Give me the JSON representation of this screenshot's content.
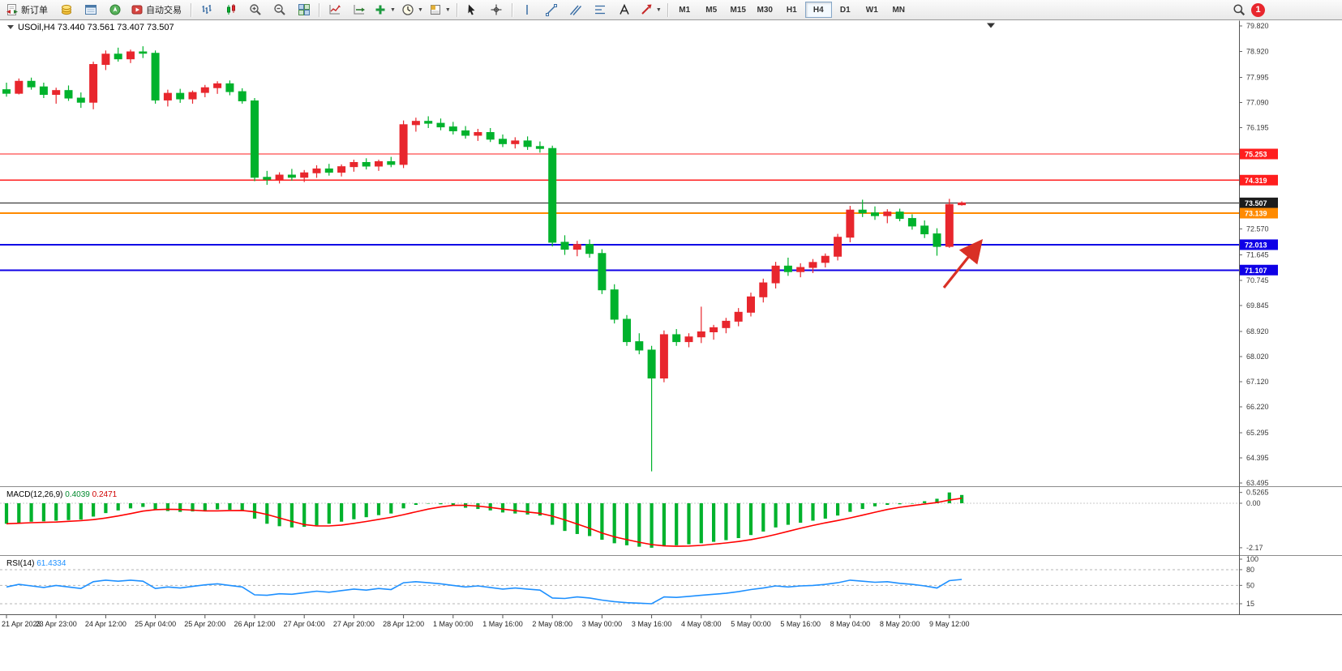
{
  "toolbar": {
    "new_order": "新订单",
    "auto_trading": "自动交易",
    "timeframes": [
      "M1",
      "M5",
      "M15",
      "M30",
      "H1",
      "H4",
      "D1",
      "W1",
      "MN"
    ],
    "active_timeframe": "H4",
    "notification_count": "1"
  },
  "chart_data": {
    "type": "candlestick",
    "symbol": "USOil",
    "timeframe": "H4",
    "header": "USOil,H4 73.440 73.561 73.407 73.507",
    "ohlc": {
      "open": "73.440",
      "high": "73.561",
      "low": "73.407",
      "close": "73.507"
    },
    "ylim": [
      63.495,
      79.82
    ],
    "candles": [
      [
        77.55,
        77.8,
        77.3,
        77.42
      ],
      [
        77.42,
        77.95,
        77.38,
        77.85
      ],
      [
        77.85,
        77.98,
        77.55,
        77.65
      ],
      [
        77.65,
        77.8,
        77.25,
        77.38
      ],
      [
        77.38,
        77.62,
        77.05,
        77.52
      ],
      [
        77.52,
        77.7,
        77.15,
        77.25
      ],
      [
        77.25,
        77.45,
        76.9,
        77.1
      ],
      [
        77.1,
        78.55,
        76.85,
        78.45
      ],
      [
        78.45,
        78.95,
        78.25,
        78.82
      ],
      [
        78.82,
        79.05,
        78.55,
        78.65
      ],
      [
        78.65,
        78.98,
        78.5,
        78.9
      ],
      [
        78.9,
        79.1,
        78.68,
        78.85
      ],
      [
        78.85,
        78.95,
        77.05,
        77.18
      ],
      [
        77.18,
        77.55,
        76.95,
        77.42
      ],
      [
        77.42,
        77.58,
        77.08,
        77.22
      ],
      [
        77.22,
        77.52,
        77.05,
        77.45
      ],
      [
        77.45,
        77.72,
        77.28,
        77.62
      ],
      [
        77.62,
        77.85,
        77.4,
        77.76
      ],
      [
        77.76,
        77.88,
        77.35,
        77.48
      ],
      [
        77.48,
        77.6,
        77.05,
        77.15
      ],
      [
        77.15,
        77.25,
        74.28,
        74.42
      ],
      [
        74.42,
        74.65,
        74.15,
        74.35
      ],
      [
        74.35,
        74.6,
        74.2,
        74.5
      ],
      [
        74.5,
        74.72,
        74.3,
        74.42
      ],
      [
        74.42,
        74.68,
        74.25,
        74.58
      ],
      [
        74.58,
        74.85,
        74.4,
        74.72
      ],
      [
        74.72,
        74.9,
        74.48,
        74.6
      ],
      [
        74.6,
        74.88,
        74.45,
        74.8
      ],
      [
        74.8,
        75.05,
        74.62,
        74.95
      ],
      [
        74.95,
        75.1,
        74.7,
        74.82
      ],
      [
        74.82,
        75.05,
        74.65,
        74.98
      ],
      [
        74.98,
        75.15,
        74.78,
        74.88
      ],
      [
        74.88,
        76.45,
        74.75,
        76.3
      ],
      [
        76.3,
        76.55,
        76.05,
        76.42
      ],
      [
        76.42,
        76.6,
        76.18,
        76.35
      ],
      [
        76.35,
        76.52,
        76.1,
        76.22
      ],
      [
        76.22,
        76.4,
        75.95,
        76.08
      ],
      [
        76.08,
        76.25,
        75.8,
        75.92
      ],
      [
        75.92,
        76.15,
        75.72,
        76.02
      ],
      [
        76.02,
        76.18,
        75.68,
        75.78
      ],
      [
        75.78,
        75.95,
        75.5,
        75.62
      ],
      [
        75.62,
        75.85,
        75.45,
        75.72
      ],
      [
        75.72,
        75.88,
        75.4,
        75.52
      ],
      [
        75.52,
        75.7,
        75.3,
        75.45
      ],
      [
        75.45,
        75.55,
        71.95,
        72.1
      ],
      [
        72.1,
        72.35,
        71.65,
        71.85
      ],
      [
        71.85,
        72.15,
        71.6,
        72.02
      ],
      [
        72.02,
        72.2,
        71.55,
        71.7
      ],
      [
        71.7,
        71.85,
        70.25,
        70.4
      ],
      [
        70.4,
        70.6,
        69.2,
        69.35
      ],
      [
        69.35,
        69.5,
        68.4,
        68.55
      ],
      [
        68.55,
        68.85,
        68.1,
        68.25
      ],
      [
        68.25,
        68.4,
        63.92,
        67.25
      ],
      [
        67.25,
        68.95,
        67.1,
        68.8
      ],
      [
        68.8,
        69.0,
        68.4,
        68.55
      ],
      [
        68.55,
        68.85,
        68.35,
        68.72
      ],
      [
        68.72,
        69.8,
        68.5,
        68.9
      ],
      [
        68.9,
        69.15,
        68.62,
        69.05
      ],
      [
        69.05,
        69.4,
        68.85,
        69.28
      ],
      [
        69.28,
        69.75,
        69.1,
        69.6
      ],
      [
        69.6,
        70.3,
        69.45,
        70.15
      ],
      [
        70.15,
        70.8,
        69.95,
        70.65
      ],
      [
        70.65,
        71.4,
        70.45,
        71.25
      ],
      [
        71.25,
        71.55,
        70.9,
        71.05
      ],
      [
        71.05,
        71.35,
        70.85,
        71.2
      ],
      [
        71.2,
        71.5,
        71.0,
        71.38
      ],
      [
        71.38,
        71.7,
        71.2,
        71.6
      ],
      [
        71.6,
        72.4,
        71.45,
        72.28
      ],
      [
        72.28,
        73.4,
        72.1,
        73.25
      ],
      [
        73.25,
        73.62,
        73.0,
        73.15
      ],
      [
        73.15,
        73.38,
        72.9,
        73.05
      ],
      [
        73.05,
        73.28,
        72.78,
        73.18
      ],
      [
        73.18,
        73.3,
        72.85,
        72.95
      ],
      [
        72.95,
        73.1,
        72.55,
        72.68
      ],
      [
        72.68,
        72.88,
        72.25,
        72.4
      ],
      [
        72.4,
        72.6,
        71.62,
        71.95
      ],
      [
        71.95,
        73.65,
        71.9,
        73.45
      ],
      [
        73.44,
        73.561,
        73.407,
        73.507
      ]
    ],
    "time_labels": [
      "21 Apr 2023",
      "23 Apr 23:00",
      "24 Apr 12:00",
      "25 Apr 04:00",
      "25 Apr 20:00",
      "26 Apr 12:00",
      "27 Apr 04:00",
      "27 Apr 20:00",
      "28 Apr 12:00",
      "1 May 00:00",
      "1 May 16:00",
      "2 May 08:00",
      "3 May 00:00",
      "3 May 16:00",
      "4 May 08:00",
      "5 May 00:00",
      "5 May 16:00",
      "8 May 04:00",
      "8 May 20:00",
      "9 May 12:00"
    ],
    "price_ticks": [
      "79.820",
      "78.920",
      "77.995",
      "77.090",
      "76.195",
      "75.295",
      "74.395",
      "73.495",
      "72.570",
      "71.645",
      "70.745",
      "69.845",
      "68.920",
      "68.020",
      "67.120",
      "66.220",
      "65.295",
      "64.395",
      "63.495"
    ],
    "hlines": [
      {
        "price": 75.253,
        "label": "75.253",
        "color": "#FF1E1E",
        "width": 1.3
      },
      {
        "price": 74.319,
        "label": "74.319",
        "color": "#FF1E1E",
        "width": 1.3
      },
      {
        "price": 73.507,
        "label": "73.507",
        "color": "#1c1c1c",
        "width": 1
      },
      {
        "price": 73.139,
        "label": "73.139",
        "color": "#FF8A00",
        "width": 2
      },
      {
        "price": 72.013,
        "label": "72.013",
        "color": "#0f00e6",
        "width": 2
      },
      {
        "price": 71.107,
        "label": "71.107",
        "color": "#0f00e6",
        "width": 2
      }
    ],
    "current_price": "73.507",
    "macd": {
      "label": "MACD(12,26,9)",
      "value_main": "0.4039",
      "value_signal": "0.2471",
      "ticks": [
        "0.5265",
        "0.00",
        "-2.17"
      ],
      "hist": [
        -1.0,
        -0.95,
        -0.9,
        -0.88,
        -0.85,
        -0.82,
        -0.8,
        -0.65,
        -0.48,
        -0.35,
        -0.25,
        -0.18,
        -0.3,
        -0.38,
        -0.42,
        -0.4,
        -0.35,
        -0.3,
        -0.32,
        -0.38,
        -0.75,
        -1.0,
        -1.12,
        -1.18,
        -1.15,
        -1.08,
        -1.0,
        -0.9,
        -0.78,
        -0.68,
        -0.58,
        -0.5,
        -0.25,
        -0.08,
        -0.02,
        -0.05,
        -0.12,
        -0.22,
        -0.28,
        -0.35,
        -0.45,
        -0.5,
        -0.55,
        -0.6,
        -1.05,
        -1.35,
        -1.5,
        -1.6,
        -1.78,
        -1.95,
        -2.05,
        -2.12,
        -2.17,
        -2.1,
        -2.05,
        -2.0,
        -1.95,
        -1.88,
        -1.8,
        -1.7,
        -1.55,
        -1.38,
        -1.18,
        -1.05,
        -0.95,
        -0.85,
        -0.75,
        -0.6,
        -0.42,
        -0.28,
        -0.15,
        -0.08,
        -0.05,
        -0.02,
        0.1,
        0.22,
        0.5265,
        0.4039
      ]
    },
    "rsi": {
      "label": "RSI(14)",
      "value": "61.4334",
      "ticks": [
        "100",
        "80",
        "50",
        "15"
      ],
      "levels": [
        80,
        50,
        15
      ],
      "values": [
        47,
        52,
        49,
        46,
        50,
        47,
        44,
        57,
        60,
        58,
        60,
        58,
        44,
        47,
        45,
        48,
        51,
        53,
        50,
        47,
        32,
        31,
        34,
        33,
        36,
        39,
        37,
        40,
        43,
        41,
        44,
        42,
        55,
        57,
        55,
        53,
        50,
        47,
        49,
        46,
        43,
        45,
        43,
        41,
        26,
        25,
        28,
        26,
        22,
        19,
        17,
        16,
        15,
        28,
        27,
        29,
        31,
        33,
        35,
        38,
        42,
        45,
        49,
        47,
        49,
        50,
        52,
        55,
        60,
        58,
        56,
        57,
        54,
        52,
        49,
        45,
        59,
        61.43
      ]
    },
    "colors": {
      "bull": "#E8262D",
      "bear": "#00B22C",
      "macd_hist": "#00B22C",
      "macd_signal": "#FF0000",
      "rsi_line": "#1E90FF",
      "arrow": "#D93025"
    },
    "arrow": {
      "from": [
        1164,
        355
      ],
      "to": [
        1208,
        300
      ]
    }
  }
}
